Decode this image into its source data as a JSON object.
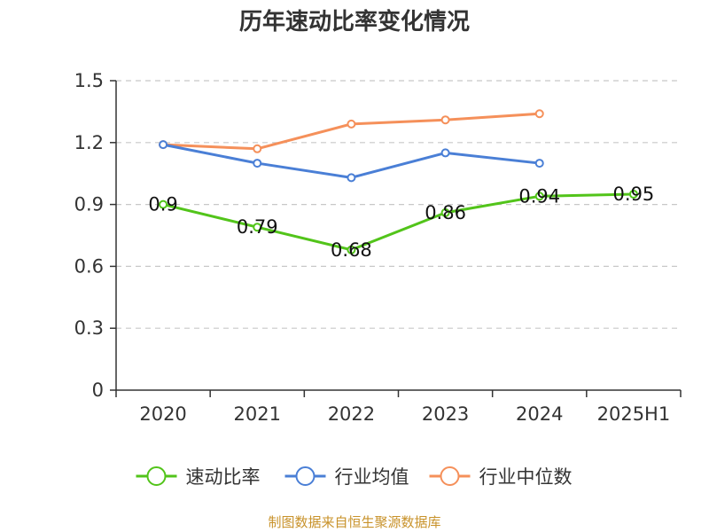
{
  "chart_data": {
    "type": "line",
    "title": "历年速动比率变化情况",
    "categories": [
      "2020",
      "2021",
      "2022",
      "2023",
      "2024",
      "2025H1"
    ],
    "ylim": [
      0,
      1.5
    ],
    "yticks": [
      "0",
      "0.3",
      "0.6",
      "0.9",
      "1.2",
      "1.5"
    ],
    "ytick_values": [
      0,
      0.3,
      0.6,
      0.9,
      1.2,
      1.5
    ],
    "grid": true,
    "legend_position": "bottom",
    "series": [
      {
        "name": "速动比率",
        "color": "#52c41a",
        "values": [
          0.9,
          0.79,
          0.68,
          0.86,
          0.94,
          0.95
        ],
        "labels": [
          "0.9",
          "0.79",
          "0.68",
          "0.86",
          "0.94",
          "0.95"
        ]
      },
      {
        "name": "行业均值",
        "color": "#4a7fd6",
        "values": [
          1.19,
          1.1,
          1.03,
          1.15,
          1.1,
          null
        ]
      },
      {
        "name": "行业中位数",
        "color": "#f5905a",
        "values": [
          1.19,
          1.17,
          1.29,
          1.31,
          1.34,
          null
        ]
      }
    ],
    "source": "制图数据来自恒生聚源数据库"
  }
}
